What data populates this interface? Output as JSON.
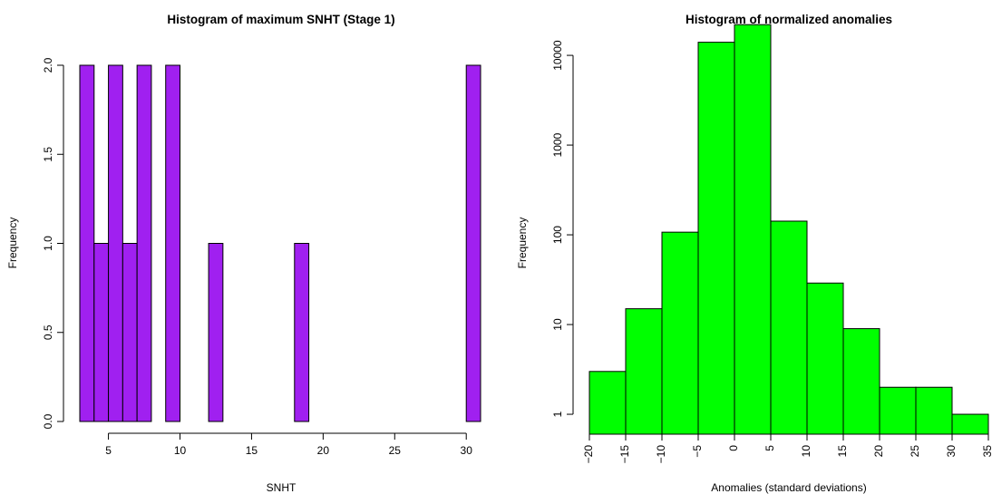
{
  "chart_data": [
    {
      "type": "bar",
      "title": "Histogram of maximum SNHT (Stage 1)",
      "xlabel": "SNHT",
      "ylabel": "Frequency",
      "bar_color": "#A020F0",
      "xlim": [
        3,
        31
      ],
      "ylim": [
        0,
        2
      ],
      "x_ticks": [
        5,
        10,
        15,
        20,
        25,
        30
      ],
      "y_ticks": [
        0.0,
        0.5,
        1.0,
        1.5,
        2.0
      ],
      "y_tick_labels": [
        "0.0",
        "0.5",
        "1.0",
        "1.5",
        "2.0"
      ],
      "bins": [
        {
          "from": 3,
          "to": 4,
          "count": 2
        },
        {
          "from": 4,
          "to": 5,
          "count": 1
        },
        {
          "from": 5,
          "to": 6,
          "count": 2
        },
        {
          "from": 6,
          "to": 7,
          "count": 1
        },
        {
          "from": 7,
          "to": 8,
          "count": 2
        },
        {
          "from": 8,
          "to": 9,
          "count": 0
        },
        {
          "from": 9,
          "to": 10,
          "count": 2
        },
        {
          "from": 10,
          "to": 11,
          "count": 0
        },
        {
          "from": 11,
          "to": 12,
          "count": 0
        },
        {
          "from": 12,
          "to": 13,
          "count": 1
        },
        {
          "from": 13,
          "to": 14,
          "count": 0
        },
        {
          "from": 14,
          "to": 15,
          "count": 0
        },
        {
          "from": 15,
          "to": 16,
          "count": 0
        },
        {
          "from": 16,
          "to": 17,
          "count": 0
        },
        {
          "from": 17,
          "to": 18,
          "count": 0
        },
        {
          "from": 18,
          "to": 19,
          "count": 1
        },
        {
          "from": 19,
          "to": 20,
          "count": 0
        },
        {
          "from": 20,
          "to": 21,
          "count": 0
        },
        {
          "from": 21,
          "to": 22,
          "count": 0
        },
        {
          "from": 22,
          "to": 23,
          "count": 0
        },
        {
          "from": 23,
          "to": 24,
          "count": 0
        },
        {
          "from": 24,
          "to": 25,
          "count": 0
        },
        {
          "from": 25,
          "to": 26,
          "count": 0
        },
        {
          "from": 26,
          "to": 27,
          "count": 0
        },
        {
          "from": 27,
          "to": 28,
          "count": 0
        },
        {
          "from": 28,
          "to": 29,
          "count": 0
        },
        {
          "from": 29,
          "to": 30,
          "count": 0
        },
        {
          "from": 30,
          "to": 31,
          "count": 2
        }
      ]
    },
    {
      "type": "bar",
      "title": "Histogram of normalized anomalies",
      "xlabel": "Anomalies (standard deviations)",
      "ylabel": "Frequency",
      "bar_color": "#00FF00",
      "y_scale": "log",
      "xlim": [
        -20,
        35
      ],
      "x_ticks": [
        -20,
        -15,
        -10,
        -5,
        0,
        5,
        10,
        15,
        20,
        25,
        30,
        35
      ],
      "x_tick_labels": [
        "−20",
        "−15",
        "−10",
        "−5",
        "0",
        "5",
        "10",
        "15",
        "20",
        "25",
        "30",
        "35"
      ],
      "y_ticks": [
        1,
        10,
        100,
        1000,
        10000
      ],
      "y_tick_labels": [
        "1",
        "10",
        "100",
        "1000",
        "10000"
      ],
      "bins": [
        {
          "from": -20,
          "to": -15,
          "count": 3
        },
        {
          "from": -15,
          "to": -10,
          "count": 15
        },
        {
          "from": -10,
          "to": -5,
          "count": 107
        },
        {
          "from": -5,
          "to": 0,
          "count": 14000
        },
        {
          "from": 0,
          "to": 5,
          "count": 22000
        },
        {
          "from": 5,
          "to": 10,
          "count": 142
        },
        {
          "from": 10,
          "to": 15,
          "count": 29
        },
        {
          "from": 15,
          "to": 20,
          "count": 9
        },
        {
          "from": 20,
          "to": 25,
          "count": 2
        },
        {
          "from": 25,
          "to": 30,
          "count": 2
        },
        {
          "from": 30,
          "to": 35,
          "count": 1
        }
      ]
    }
  ]
}
